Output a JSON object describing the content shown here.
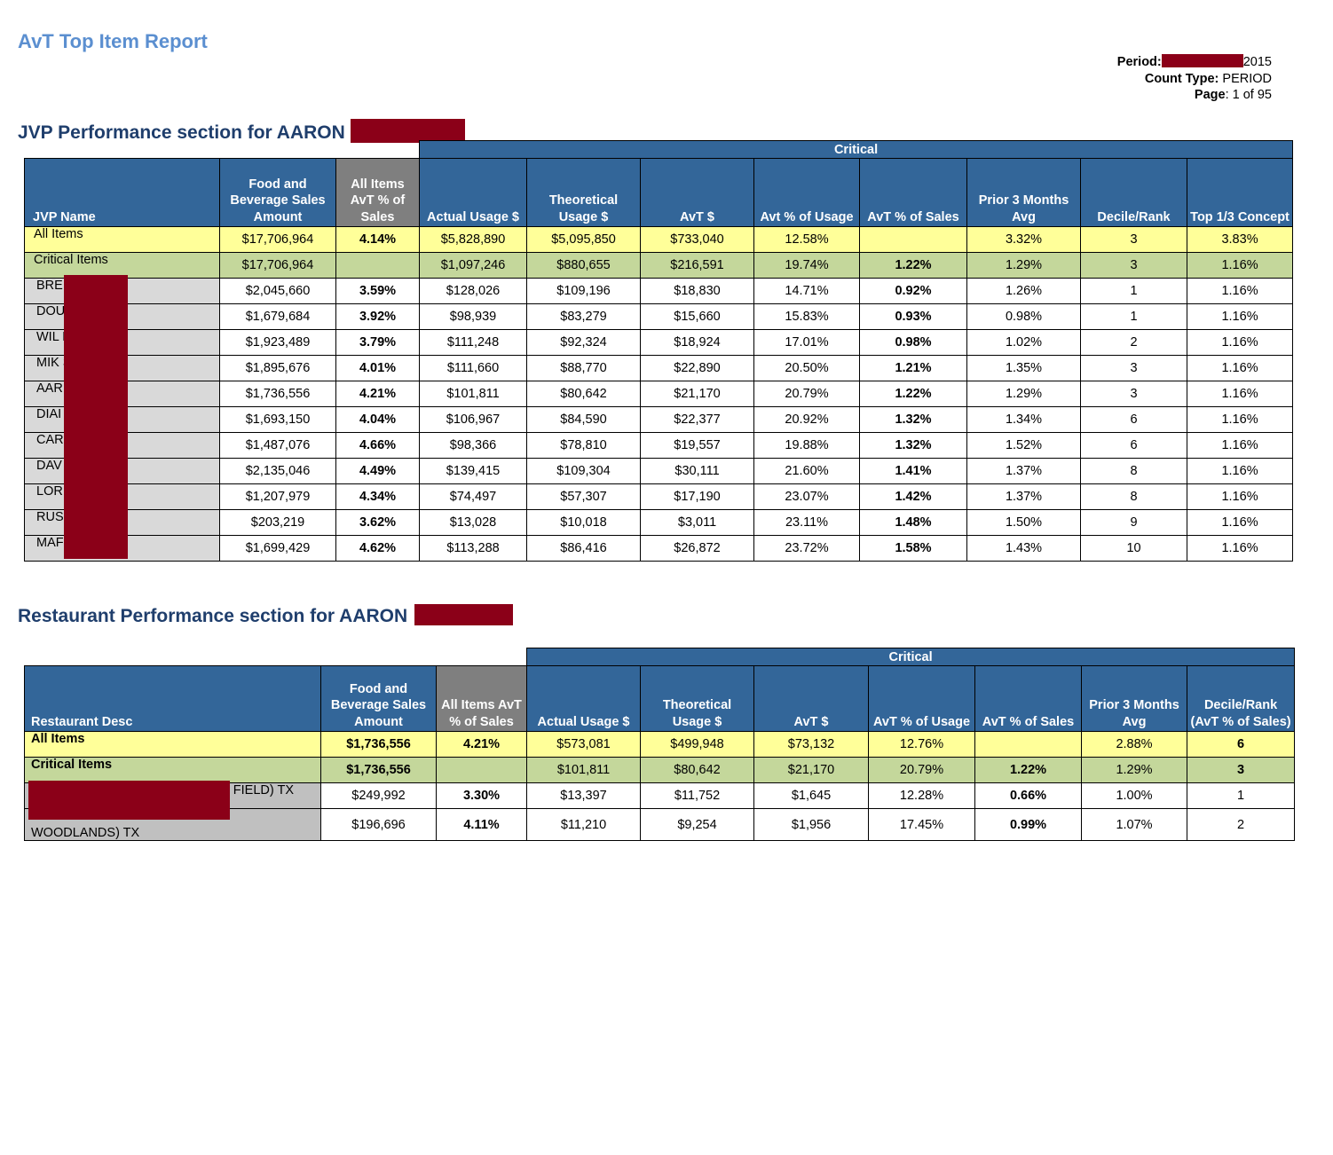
{
  "report_title": "AvT Top Item Report",
  "meta": {
    "period_label": "Period:",
    "period_year": "2015",
    "count_type_label": "Count Type:",
    "count_type_value": "PERIOD",
    "page_label": "Page",
    "page_value": ": 1 of 95"
  },
  "jvp": {
    "section_title": "JVP Performance section for AARON",
    "critical_label": "Critical",
    "headers": [
      "JVP Name",
      "Food and Beverage Sales Amount",
      "All Items AvT % of Sales",
      "Actual Usage $",
      "Theoretical Usage $",
      "AvT $",
      "Avt % of Usage",
      "AvT % of Sales",
      "Prior 3 Months Avg",
      "Decile/Rank",
      "Top 1/3 Concept"
    ],
    "rows": [
      {
        "type": "all",
        "cells": [
          "All Items",
          "$17,706,964",
          "4.14%",
          "$5,828,890",
          "$5,095,850",
          "$733,040",
          "12.58%",
          "",
          "3.32%",
          "3",
          "3.83%"
        ]
      },
      {
        "type": "critical",
        "cells": [
          "Critical Items",
          "$17,706,964",
          "",
          "$1,097,246",
          "$880,655",
          "$216,591",
          "19.74%",
          "1.22%",
          "1.29%",
          "3",
          "1.16%"
        ]
      },
      {
        "type": "data",
        "cells": [
          "BRE        GSBURY",
          "$2,045,660",
          "3.59%",
          "$128,026",
          "$109,196",
          "$18,830",
          "14.71%",
          "0.92%",
          "1.26%",
          "1",
          "1.16%"
        ]
      },
      {
        "type": "data",
        "cells": [
          "DOU",
          "$1,679,684",
          "3.92%",
          "$98,939",
          "$83,279",
          "$15,660",
          "15.83%",
          "0.93%",
          "0.98%",
          "1",
          "1.16%"
        ]
      },
      {
        "type": "data",
        "cells": [
          "WIL          RED",
          "$1,923,489",
          "3.79%",
          "$111,248",
          "$92,324",
          "$18,924",
          "17.01%",
          "0.98%",
          "1.02%",
          "2",
          "1.16%"
        ]
      },
      {
        "type": "data",
        "cells": [
          "MIK          SON",
          "$1,895,676",
          "4.01%",
          "$111,660",
          "$88,770",
          "$22,890",
          "20.50%",
          "1.21%",
          "1.35%",
          "3",
          "1.16%"
        ]
      },
      {
        "type": "data",
        "cells": [
          "AAR          KER",
          "$1,736,556",
          "4.21%",
          "$101,811",
          "$80,642",
          "$21,170",
          "20.79%",
          "1.22%",
          "1.29%",
          "3",
          "1.16%"
        ]
      },
      {
        "type": "data",
        "cells": [
          "DIAI          DS",
          "$1,693,150",
          "4.04%",
          "$106,967",
          "$84,590",
          "$22,377",
          "20.92%",
          "1.32%",
          "1.34%",
          "6",
          "1.16%"
        ]
      },
      {
        "type": "data",
        "cells": [
          "CAR          TH",
          "$1,487,076",
          "4.66%",
          "$98,366",
          "$78,810",
          "$19,557",
          "19.88%",
          "1.32%",
          "1.52%",
          "6",
          "1.16%"
        ]
      },
      {
        "type": "data",
        "cells": [
          "DAV          S",
          "$2,135,046",
          "4.49%",
          "$139,415",
          "$109,304",
          "$30,111",
          "21.60%",
          "1.41%",
          "1.37%",
          "8",
          "1.16%"
        ]
      },
      {
        "type": "data",
        "cells": [
          "LOR          N",
          "$1,207,979",
          "4.34%",
          "$74,497",
          "$57,307",
          "$17,190",
          "23.07%",
          "1.42%",
          "1.37%",
          "8",
          "1.16%"
        ]
      },
      {
        "type": "data",
        "cells": [
          "RUS          RRY",
          "$203,219",
          "3.62%",
          "$13,028",
          "$10,018",
          "$3,011",
          "23.11%",
          "1.48%",
          "1.50%",
          "9",
          "1.16%"
        ]
      },
      {
        "type": "data",
        "cells": [
          "MAF          ND",
          "$1,699,429",
          "4.62%",
          "$113,288",
          "$86,416",
          "$26,872",
          "23.72%",
          "1.58%",
          "1.43%",
          "10",
          "1.16%"
        ]
      }
    ]
  },
  "restaurant": {
    "section_title": "Restaurant Performance section for AARON",
    "critical_label": "Critical",
    "headers": [
      "Restaurant Desc",
      "Food and Beverage Sales Amount",
      "All Items AvT % of Sales",
      "Actual Usage $",
      "Theoretical Usage $",
      "AvT $",
      "AvT % of Usage",
      "AvT % of Sales",
      "Prior 3 Months Avg",
      "Decile/Rank (AvT % of Sales)"
    ],
    "rows": [
      {
        "type": "all",
        "cells": [
          "All Items",
          "$1,736,556",
          "4.21%",
          "$573,081",
          "$499,948",
          "$73,132",
          "12.76%",
          "",
          "2.88%",
          "6"
        ]
      },
      {
        "type": "critical",
        "cells": [
          "Critical Items",
          "$1,736,556",
          "",
          "$101,811",
          "$80,642",
          "$21,170",
          "20.79%",
          "1.22%",
          "1.29%",
          "3"
        ]
      },
      {
        "type": "data",
        "cells": [
          "FIELD) TX",
          "$249,992",
          "3.30%",
          "$13,397",
          "$11,752",
          "$1,645",
          "12.28%",
          "0.66%",
          "1.00%",
          "1"
        ]
      },
      {
        "type": "data",
        "cells": [
          "WOODLANDS) TX",
          "$196,696",
          "4.11%",
          "$11,210",
          "$9,254",
          "$1,956",
          "17.45%",
          "0.99%",
          "1.07%",
          "2"
        ]
      }
    ]
  }
}
